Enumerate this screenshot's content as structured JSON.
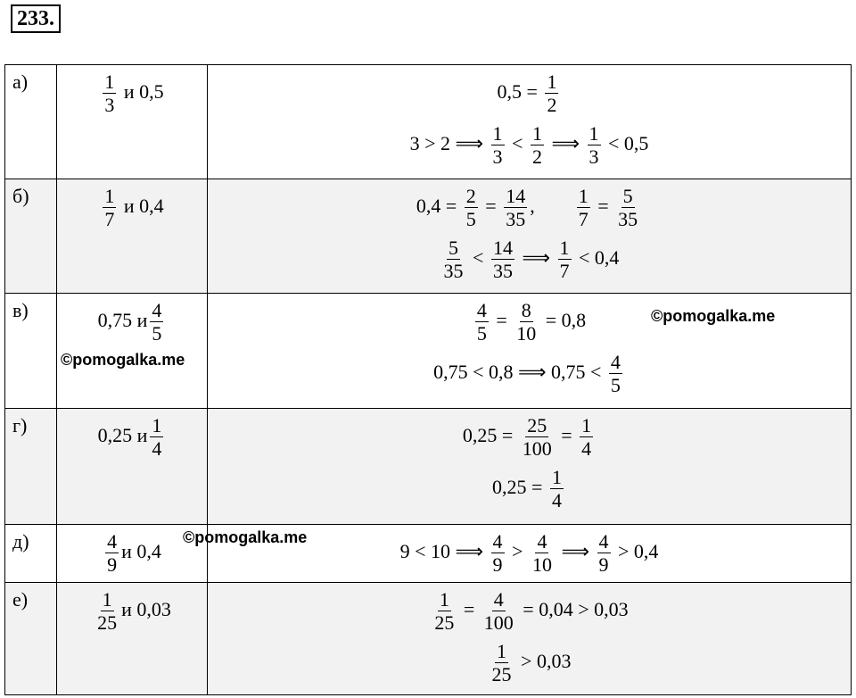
{
  "problem_number": "233.",
  "table": {
    "rows": [
      {
        "label": "а)",
        "task": [
          {
            "num": "1",
            "den": "3"
          },
          " и 0,5"
        ],
        "solution": [
          [
            "0,5 = ",
            {
              "num": "1",
              "den": "2"
            }
          ],
          [
            "3 > 2 ⟹ ",
            {
              "num": "1",
              "den": "3"
            },
            " < ",
            {
              "num": "1",
              "den": "2"
            },
            " ⟹ ",
            {
              "num": "1",
              "den": "3"
            },
            " < 0,5"
          ]
        ]
      },
      {
        "label": "б)",
        "task": [
          {
            "num": "1",
            "den": "7"
          },
          " и 0,4"
        ],
        "solution": [
          [
            "0,4 = ",
            {
              "num": "2",
              "den": "5"
            },
            " = ",
            {
              "num": "14",
              "den": "35"
            },
            ",        ",
            {
              "num": "1",
              "den": "7"
            },
            " = ",
            {
              "num": "5",
              "den": "35"
            }
          ],
          [
            {
              "num": "5",
              "den": "35"
            },
            " < ",
            {
              "num": "14",
              "den": "35"
            },
            " ⟹ ",
            {
              "num": "1",
              "den": "7"
            },
            " < 0,4"
          ]
        ]
      },
      {
        "label": "в)",
        "task": [
          "0,75  и",
          {
            "num": "4",
            "den": "5"
          }
        ],
        "solution": [
          [
            {
              "num": "4",
              "den": "5"
            },
            " = ",
            {
              "num": "8",
              "den": "10"
            },
            " = 0,8"
          ],
          [
            "0,75 < 0,8 ⟹ 0,75 < ",
            {
              "num": "4",
              "den": "5"
            }
          ]
        ]
      },
      {
        "label": "г)",
        "task": [
          "0,25 и",
          {
            "num": "1",
            "den": "4"
          }
        ],
        "solution": [
          [
            "0,25 = ",
            {
              "num": "25",
              "den": "100"
            },
            " = ",
            {
              "num": "1",
              "den": "4"
            }
          ],
          [
            "0,25 = ",
            {
              "num": "1",
              "den": "4"
            }
          ]
        ]
      },
      {
        "label": "д)",
        "task": [
          {
            "num": "4",
            "den": "9"
          },
          "и 0,4"
        ],
        "solution": [
          [
            "9 < 10 ⟹ ",
            {
              "num": "4",
              "den": "9"
            },
            " > ",
            {
              "num": "4",
              "den": "10"
            },
            " ⟹ ",
            {
              "num": "4",
              "den": "9"
            },
            " > 0,4"
          ]
        ]
      },
      {
        "label": "е)",
        "task": [
          {
            "num": "1",
            "den": "25"
          },
          "и 0,03"
        ],
        "solution": [
          [
            {
              "num": "1",
              "den": "25"
            },
            " = ",
            {
              "num": "4",
              "den": "100"
            },
            " = 0,04 > 0,03"
          ],
          [
            {
              "num": "1",
              "den": "25"
            },
            " > 0,03"
          ]
        ]
      }
    ]
  },
  "watermarks": [
    "©pomogalka.me",
    "©pomogalka.me",
    "©pomogalka.me"
  ]
}
